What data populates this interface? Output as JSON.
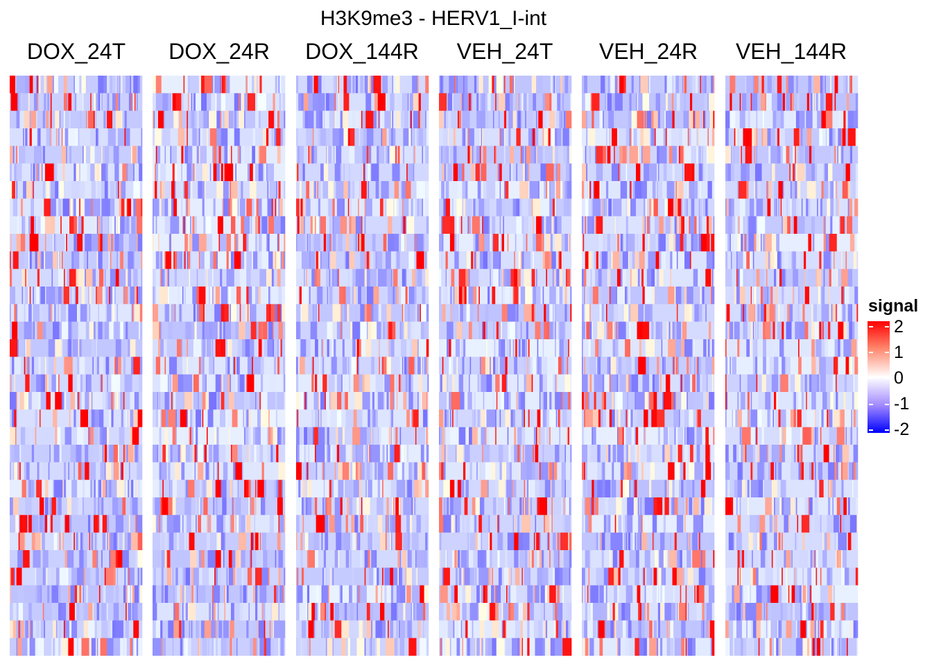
{
  "chart_data": {
    "type": "heatmap",
    "title": "H3K9me3 - HERV1_I-int",
    "panels": [
      "DOX_24T",
      "DOX_24R",
      "DOX_144R",
      "VEH_24T",
      "VEH_24R",
      "VEH_144R"
    ],
    "rows_per_panel": 33,
    "columns_per_panel": 120,
    "generator_seed": 7,
    "value_range": [
      -2,
      2
    ],
    "legend": {
      "title": "signal",
      "ticks": [
        "2",
        "1",
        "0",
        "-1",
        "-2"
      ],
      "colors": {
        "low": "#0000ff",
        "mid": "#ffffff",
        "high": "#ff0000"
      },
      "placement": "right"
    }
  }
}
